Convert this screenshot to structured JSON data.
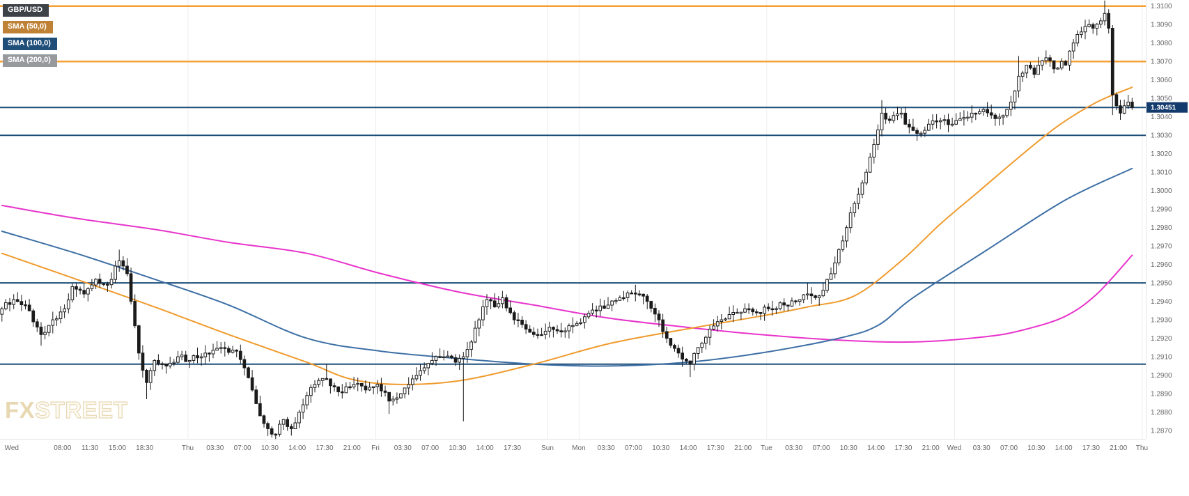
{
  "window": {
    "background": "#ffffff"
  },
  "legend": {
    "items": [
      {
        "label": "GBP/USD",
        "bg": "#3d4148",
        "fg": "#ffffff"
      },
      {
        "label": "SMA (50,0)",
        "bg": "#bf8136",
        "fg": "#ffffff"
      },
      {
        "label": "SMA (100,0)",
        "bg": "#1f4e79",
        "fg": "#ffffff"
      },
      {
        "label": "SMA (200,0)",
        "bg": "#97999d",
        "fg": "#ffffff"
      }
    ]
  },
  "watermark": {
    "fx": "FX",
    "street": "STREET",
    "color": "#e8d8b2"
  },
  "current_price_label": {
    "text": "1.30451",
    "bg": "#123a6d",
    "fg": "#ffffff"
  },
  "chart_data": {
    "type": "candlestick",
    "instrument": "GBP/USD",
    "overlays": [
      "SMA (50,0)",
      "SMA (100,0)",
      "SMA (200,0)"
    ],
    "last_price": 1.30451,
    "price_axis": {
      "min": 1.28655,
      "max": 1.31033,
      "color": "#666666",
      "tick_labels": [
        "1.3100",
        "1.3090",
        "1.3080",
        "1.3070",
        "1.3060",
        "1.3050",
        "1.3040",
        "1.3030",
        "1.3020",
        "1.3010",
        "1.3000",
        "1.2990",
        "1.2980",
        "1.2970",
        "1.2960",
        "1.2950",
        "1.2940",
        "1.2930",
        "1.2920",
        "1.2910",
        "1.2900",
        "1.2890",
        "1.2880",
        "1.2870"
      ]
    },
    "time_axis": {
      "span": 293,
      "color": "#666666",
      "labels": [
        {
          "t": "Wed",
          "i": 3
        },
        {
          "t": "08:00",
          "i": 16
        },
        {
          "t": "11:30",
          "i": 23
        },
        {
          "t": "15:00",
          "i": 30
        },
        {
          "t": "18:30",
          "i": 37
        },
        {
          "t": "Thu",
          "i": 48
        },
        {
          "t": "03:30",
          "i": 55
        },
        {
          "t": "07:00",
          "i": 62
        },
        {
          "t": "10:30",
          "i": 69
        },
        {
          "t": "14:00",
          "i": 76
        },
        {
          "t": "17:30",
          "i": 83
        },
        {
          "t": "21:00",
          "i": 90
        },
        {
          "t": "Fri",
          "i": 96
        },
        {
          "t": "03:30",
          "i": 103
        },
        {
          "t": "07:00",
          "i": 110
        },
        {
          "t": "10:30",
          "i": 117
        },
        {
          "t": "14:00",
          "i": 124
        },
        {
          "t": "17:30",
          "i": 131
        },
        {
          "t": "Sun",
          "i": 140
        },
        {
          "t": "Mon",
          "i": 148
        },
        {
          "t": "03:30",
          "i": 155
        },
        {
          "t": "07:00",
          "i": 162
        },
        {
          "t": "10:30",
          "i": 169
        },
        {
          "t": "14:00",
          "i": 176
        },
        {
          "t": "17:30",
          "i": 183
        },
        {
          "t": "21:00",
          "i": 190
        },
        {
          "t": "Tue",
          "i": 196
        },
        {
          "t": "03:30",
          "i": 203
        },
        {
          "t": "07:00",
          "i": 210
        },
        {
          "t": "10:30",
          "i": 217
        },
        {
          "t": "14:00",
          "i": 224
        },
        {
          "t": "17:30",
          "i": 231
        },
        {
          "t": "21:00",
          "i": 238
        },
        {
          "t": "Wed",
          "i": 244
        },
        {
          "t": "03:30",
          "i": 251
        },
        {
          "t": "07:00",
          "i": 258
        },
        {
          "t": "10:30",
          "i": 265
        },
        {
          "t": "14:00",
          "i": 272
        },
        {
          "t": "17:30",
          "i": 279
        },
        {
          "t": "21:00",
          "i": 286
        },
        {
          "t": "Thu",
          "i": 292
        }
      ]
    },
    "horizontal_levels": [
      {
        "price": 1.31,
        "color": "#f5a033",
        "width": 2.5
      },
      {
        "price": 1.307,
        "color": "#f5a033",
        "width": 2.5
      },
      {
        "price": 1.30451,
        "color": "#1f4e79",
        "width": 2
      },
      {
        "price": 1.303,
        "color": "#1f4e79",
        "width": 2
      },
      {
        "price": 1.295,
        "color": "#1f4e79",
        "width": 2
      },
      {
        "price": 1.2906,
        "color": "#1f4e79",
        "width": 2
      }
    ],
    "day_separators": [
      48,
      96,
      140,
      148,
      196,
      244,
      292
    ],
    "candles": {
      "count": 290,
      "up_fill": "#ffffff",
      "down_fill": "#1b1b1b",
      "outline": "#1b1b1b",
      "close_waypoints": [
        [
          0,
          1.2936
        ],
        [
          3,
          1.2941
        ],
        [
          6,
          1.2938
        ],
        [
          10,
          1.2922
        ],
        [
          13,
          1.293
        ],
        [
          16,
          1.2936
        ],
        [
          18,
          1.2948
        ],
        [
          21,
          1.2944
        ],
        [
          24,
          1.2952
        ],
        [
          27,
          1.2949
        ],
        [
          30,
          1.2962
        ],
        [
          32,
          1.2955
        ],
        [
          33,
          1.294
        ],
        [
          35,
          1.2912
        ],
        [
          37,
          1.2896
        ],
        [
          39,
          1.2908
        ],
        [
          42,
          1.2905
        ],
        [
          45,
          1.291
        ],
        [
          48,
          1.2908
        ],
        [
          52,
          1.2912
        ],
        [
          56,
          1.2915
        ],
        [
          60,
          1.2913
        ],
        [
          62,
          1.2904
        ],
        [
          64,
          1.2892
        ],
        [
          66,
          1.2878
        ],
        [
          68,
          1.2871
        ],
        [
          70,
          1.2868
        ],
        [
          72,
          1.2876
        ],
        [
          74,
          1.2871
        ],
        [
          76,
          1.288
        ],
        [
          78,
          1.2889
        ],
        [
          80,
          1.2895
        ],
        [
          83,
          1.2898
        ],
        [
          86,
          1.2891
        ],
        [
          90,
          1.2895
        ],
        [
          93,
          1.2892
        ],
        [
          96,
          1.2895
        ],
        [
          99,
          1.2886
        ],
        [
          102,
          1.289
        ],
        [
          105,
          1.2898
        ],
        [
          108,
          1.2904
        ],
        [
          110,
          1.2908
        ],
        [
          113,
          1.291
        ],
        [
          116,
          1.2907
        ],
        [
          118,
          1.291
        ],
        [
          120,
          1.2918
        ],
        [
          122,
          1.293
        ],
        [
          124,
          1.2941
        ],
        [
          126,
          1.2937
        ],
        [
          128,
          1.2942
        ],
        [
          131,
          1.293
        ],
        [
          134,
          1.2925
        ],
        [
          137,
          1.2922
        ],
        [
          140,
          1.2926
        ],
        [
          144,
          1.2924
        ],
        [
          147,
          1.2928
        ],
        [
          152,
          1.2935
        ],
        [
          155,
          1.2938
        ],
        [
          158,
          1.2942
        ],
        [
          162,
          1.2944
        ],
        [
          165,
          1.294
        ],
        [
          168,
          1.293
        ],
        [
          170,
          1.292
        ],
        [
          173,
          1.2912
        ],
        [
          176,
          1.2906
        ],
        [
          178,
          1.2915
        ],
        [
          181,
          1.2925
        ],
        [
          184,
          1.293
        ],
        [
          187,
          1.2934
        ],
        [
          190,
          1.2936
        ],
        [
          193,
          1.2934
        ],
        [
          196,
          1.2936
        ],
        [
          200,
          1.2938
        ],
        [
          203,
          1.294
        ],
        [
          206,
          1.2944
        ],
        [
          208,
          1.2942
        ],
        [
          210,
          1.2946
        ],
        [
          212,
          1.2955
        ],
        [
          214,
          1.2968
        ],
        [
          216,
          1.298
        ],
        [
          217,
          1.2988
        ],
        [
          219,
          1.2998
        ],
        [
          221,
          1.301
        ],
        [
          223,
          1.3025
        ],
        [
          225,
          1.3042
        ],
        [
          227,
          1.3038
        ],
        [
          230,
          1.3042
        ],
        [
          231,
          1.3036
        ],
        [
          234,
          1.3031
        ],
        [
          237,
          1.3036
        ],
        [
          240,
          1.3038
        ],
        [
          243,
          1.3036
        ],
        [
          244,
          1.3038
        ],
        [
          248,
          1.3042
        ],
        [
          251,
          1.3044
        ],
        [
          254,
          1.3039
        ],
        [
          257,
          1.3044
        ],
        [
          258,
          1.3048
        ],
        [
          260,
          1.3062
        ],
        [
          262,
          1.3068
        ],
        [
          264,
          1.3063
        ],
        [
          265,
          1.3068
        ],
        [
          267,
          1.3072
        ],
        [
          269,
          1.3066
        ],
        [
          271,
          1.307
        ],
        [
          272,
          1.3068
        ],
        [
          274,
          1.308
        ],
        [
          276,
          1.3086
        ],
        [
          278,
          1.309
        ],
        [
          279,
          1.3088
        ],
        [
          281,
          1.3092
        ],
        [
          282,
          1.3096
        ],
        [
          283,
          1.3088
        ],
        [
          284,
          1.3052
        ],
        [
          285,
          1.3046
        ],
        [
          286,
          1.3042
        ],
        [
          287,
          1.3046
        ],
        [
          288,
          1.3048
        ],
        [
          289,
          1.30451
        ]
      ],
      "wick_spikes": [
        {
          "i": 10,
          "low": 1.2916
        },
        {
          "i": 30,
          "high": 1.2968
        },
        {
          "i": 37,
          "low": 1.2887
        },
        {
          "i": 70,
          "low": 1.2865
        },
        {
          "i": 83,
          "high": 1.2906
        },
        {
          "i": 99,
          "low": 1.2879
        },
        {
          "i": 118,
          "low": 1.2875
        },
        {
          "i": 162,
          "high": 1.2949
        },
        {
          "i": 176,
          "low": 1.2899
        },
        {
          "i": 206,
          "high": 1.295
        },
        {
          "i": 225,
          "high": 1.3049
        },
        {
          "i": 234,
          "low": 1.3027
        },
        {
          "i": 260,
          "high": 1.3073
        },
        {
          "i": 282,
          "high": 1.3103
        },
        {
          "i": 284,
          "low": 1.3041
        }
      ]
    },
    "sma_series": [
      {
        "name": "SMA (50,0)",
        "color": "#ef9b2d",
        "points": [
          [
            0,
            1.2966
          ],
          [
            19,
            1.2952
          ],
          [
            39,
            1.2937
          ],
          [
            58,
            1.2922
          ],
          [
            78,
            1.2907
          ],
          [
            89,
            1.2898
          ],
          [
            101,
            1.2895
          ],
          [
            117,
            1.2897
          ],
          [
            136,
            1.2906
          ],
          [
            155,
            1.2917
          ],
          [
            175,
            1.2925
          ],
          [
            194,
            1.2932
          ],
          [
            206,
            1.2937
          ],
          [
            218,
            1.2943
          ],
          [
            230,
            1.2962
          ],
          [
            240,
            1.2982
          ],
          [
            250,
            1.3
          ],
          [
            260,
            1.3018
          ],
          [
            270,
            1.3035
          ],
          [
            280,
            1.3048
          ],
          [
            289,
            1.3056
          ]
        ]
      },
      {
        "name": "SMA (100,0)",
        "color": "#3d6fa5",
        "points": [
          [
            0,
            1.2978
          ],
          [
            19,
            1.2966
          ],
          [
            39,
            1.2952
          ],
          [
            58,
            1.2938
          ],
          [
            78,
            1.292
          ],
          [
            97,
            1.2913
          ],
          [
            117,
            1.2909
          ],
          [
            136,
            1.2906
          ],
          [
            155,
            1.2905
          ],
          [
            175,
            1.2907
          ],
          [
            194,
            1.2912
          ],
          [
            214,
            1.292
          ],
          [
            224,
            1.2927
          ],
          [
            233,
            1.2942
          ],
          [
            252,
            1.2968
          ],
          [
            272,
            1.2995
          ],
          [
            289,
            1.3012
          ]
        ]
      },
      {
        "name": "SMA (200,0)",
        "color": "#e833cb",
        "points": [
          [
            0,
            1.2992
          ],
          [
            19,
            1.2985
          ],
          [
            39,
            1.2979
          ],
          [
            58,
            1.2972
          ],
          [
            78,
            1.2966
          ],
          [
            97,
            1.2955
          ],
          [
            117,
            1.2945
          ],
          [
            136,
            1.2938
          ],
          [
            155,
            1.2931
          ],
          [
            175,
            1.2926
          ],
          [
            194,
            1.2922
          ],
          [
            214,
            1.2919
          ],
          [
            233,
            1.2918
          ],
          [
            252,
            1.2921
          ],
          [
            262,
            1.2925
          ],
          [
            272,
            1.2932
          ],
          [
            280,
            1.2944
          ],
          [
            289,
            1.2965
          ]
        ]
      }
    ]
  }
}
